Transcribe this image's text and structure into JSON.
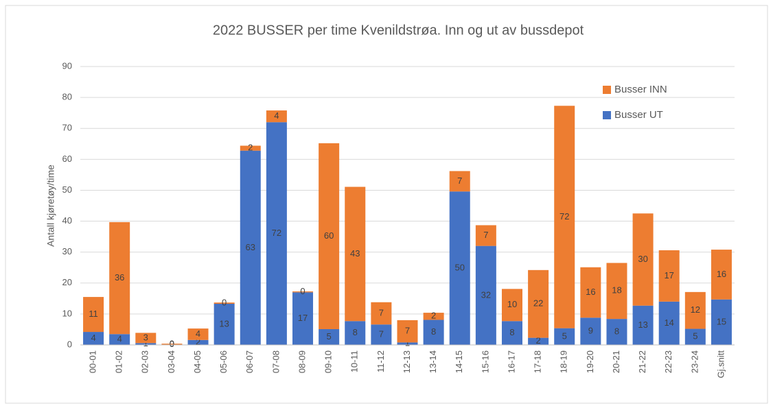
{
  "chart_data": {
    "type": "stacked_bar",
    "title": "2022 BUSSER per time Kvenildstrøa. Inn og ut av bussdepot",
    "y_label": "Antall kjøretøy/time",
    "categories": [
      "00-01",
      "01-02",
      "02-03",
      "03-04",
      "04-05",
      "05-06",
      "06-07",
      "07-08",
      "08-09",
      "09-10",
      "10-11",
      "11-12",
      "12-13",
      "13-14",
      "14-15",
      "15-16",
      "16-17",
      "17-18",
      "18-19",
      "19-20",
      "20-21",
      "21-22",
      "22-23",
      "23-24",
      "Gj.snitt"
    ],
    "series": [
      {
        "name": "Busser UT",
        "color": "#4472c4",
        "values": [
          4.2,
          3.5,
          0.6,
          0.1,
          1.6,
          13.3,
          62.8,
          72,
          17,
          5.1,
          7.7,
          6.6,
          0.8,
          8.1,
          49.6,
          32,
          7.7,
          2.3,
          5.4,
          8.8,
          8.4,
          12.7,
          14,
          5.2,
          14.7
        ],
        "value_labels": [
          "4",
          "4",
          "1",
          "0",
          "2",
          "13",
          "63",
          "72",
          "17",
          "5",
          "8",
          "7",
          "1",
          "8",
          "50",
          "32",
          "8",
          "2",
          "5",
          "9",
          "8",
          "13",
          "14",
          "5",
          "15"
        ]
      },
      {
        "name": "Busser INN",
        "color": "#ed7d31",
        "values": [
          11.3,
          36.2,
          3.3,
          0.3,
          3.7,
          0.4,
          1.6,
          3.8,
          0.3,
          60.1,
          43.4,
          7.2,
          7.2,
          2.3,
          6.6,
          6.7,
          10.4,
          21.9,
          71.9,
          16.3,
          18.1,
          29.8,
          16.6,
          11.9,
          16.1
        ],
        "value_labels": [
          "11",
          "36",
          "3",
          "0",
          "4",
          "0",
          "2",
          "4",
          "0",
          "60",
          "43",
          "7",
          "7",
          "2",
          "7",
          "7",
          "10",
          "22",
          "72",
          "16",
          "18",
          "30",
          "17",
          "12",
          "16"
        ]
      }
    ],
    "ylim": [
      0,
      90
    ],
    "yticks": [
      0,
      10,
      20,
      30,
      40,
      50,
      60,
      70,
      80,
      90
    ],
    "grid": true,
    "legend": "upper right"
  }
}
